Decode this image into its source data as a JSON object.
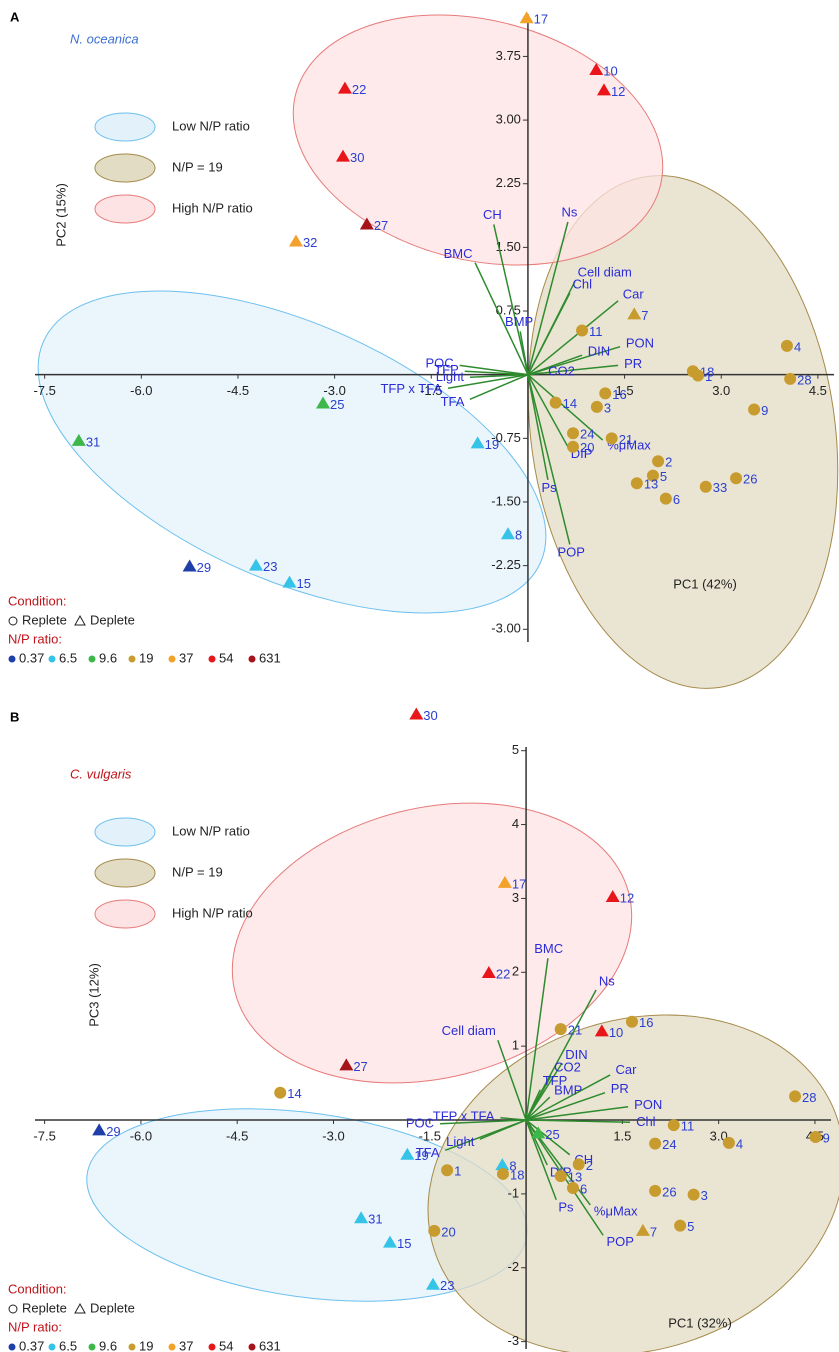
{
  "chart_data": [
    {
      "type": "biplot",
      "panel": "A",
      "title": "N. oceanica",
      "title_color": "#3b6fd0",
      "xlabel": "PC1 (42%)",
      "ylabel": "PC2 (15%)",
      "xlim": [
        -7.65,
        4.75
      ],
      "ylim": [
        -3.15,
        4.25
      ],
      "xticks": [
        -7.5,
        {
          "value": -6,
          "label": "-6.0"
        },
        -4.5,
        {
          "value": -3,
          "label": "-3.0"
        },
        -1.5,
        1.5,
        {
          "value": 3,
          "label": "3.0"
        },
        4.5
      ],
      "yticks": [
        3.75,
        {
          "value": 3,
          "label": "3.00"
        },
        2.25,
        {
          "value": 1.5,
          "label": "1.50"
        },
        0.75,
        {
          "value": -0.75,
          "label": "-0.75"
        },
        {
          "value": -1.5,
          "label": "-1.50"
        },
        -2.25,
        {
          "value": -3,
          "label": "-3.00"
        }
      ],
      "groups": [
        {
          "name": "Low N/P ratio",
          "fill": "#e3f1fb",
          "stroke": "#6cc0ee"
        },
        {
          "name": "N/P = 19",
          "fill": "#e3dcc4",
          "stroke": "#a58a4a"
        },
        {
          "name": "High N/P ratio",
          "fill": "#fde3e3",
          "stroke": "#e87a7a"
        }
      ],
      "condition_title": "Condition:",
      "conditions": [
        "Replete",
        "Deplete"
      ],
      "ratio_title": "N/P ratio:",
      "series": [
        {
          "name": 0.37,
          "color": "#1f3fa8",
          "labels": [
            "29"
          ],
          "x": [
            -5.25
          ],
          "y": [
            -2.26
          ],
          "condition": [
            "Deplete"
          ]
        },
        {
          "name": 6.5,
          "color": "#35c3e8",
          "labels": [
            "19",
            "8",
            "23",
            "15"
          ],
          "x": [
            -0.78,
            -0.31,
            -4.22,
            -3.7
          ],
          "y": [
            -0.81,
            -1.88,
            -2.25,
            -2.45
          ],
          "condition": [
            "Deplete",
            "Deplete",
            "Deplete",
            "Deplete"
          ]
        },
        {
          "name": 9.6,
          "color": "#3cb84a",
          "labels": [
            "25",
            "31"
          ],
          "x": [
            -3.18,
            -6.97
          ],
          "y": [
            -0.34,
            -0.78
          ],
          "condition": [
            "Deplete",
            "Deplete"
          ]
        },
        {
          "name": 19,
          "color": "#c89b2e",
          "labels": [
            "7",
            "11",
            "4",
            "18",
            "1",
            "28",
            "16",
            "9",
            "14",
            "3",
            "24",
            "21",
            "20",
            "2",
            "5",
            "13",
            "6",
            "33",
            "26"
          ],
          "x": [
            1.65,
            0.84,
            4.02,
            2.56,
            2.64,
            4.07,
            1.2,
            3.51,
            0.43,
            1.07,
            0.7,
            1.3,
            0.7,
            2.02,
            1.94,
            1.69,
            2.14,
            2.76,
            3.23
          ],
          "y": [
            0.71,
            0.52,
            0.34,
            0.04,
            -0.01,
            -0.05,
            -0.22,
            -0.41,
            -0.33,
            -0.38,
            -0.69,
            -0.75,
            -0.85,
            -1.02,
            -1.19,
            -1.28,
            -1.46,
            -1.32,
            -1.22
          ],
          "condition": [
            "Deplete",
            "Replete",
            "Replete",
            "Replete",
            "Replete",
            "Replete",
            "Replete",
            "Replete",
            "Replete",
            "Replete",
            "Replete",
            "Replete",
            "Replete",
            "Replete",
            "Replete",
            "Replete",
            "Replete",
            "Replete",
            "Replete"
          ]
        },
        {
          "name": 37,
          "color": "#f2a12a",
          "labels": [
            "17",
            "32"
          ],
          "x": [
            -0.02,
            -3.6
          ],
          "y": [
            4.2,
            1.57
          ],
          "condition": [
            "Deplete",
            "Deplete"
          ]
        },
        {
          "name": 54,
          "color": "#e8161b",
          "labels": [
            "10",
            "12",
            "22",
            "30"
          ],
          "x": [
            1.06,
            1.18,
            -2.84,
            -2.87
          ],
          "y": [
            3.59,
            3.35,
            3.37,
            2.57
          ],
          "condition": [
            "Deplete",
            "Deplete",
            "Deplete",
            "Deplete"
          ]
        },
        {
          "name": 631,
          "color": "#a5141a",
          "labels": [
            "27"
          ],
          "x": [
            -2.5
          ],
          "y": [
            1.77
          ],
          "condition": [
            "Deplete"
          ]
        }
      ],
      "loadings": {
        "color": "#2e8b2e",
        "label_color": "#2b2bd8",
        "labels": [
          "CH",
          "Ns",
          "BMC",
          "Cell diam",
          "Chl",
          "Car",
          "BMP",
          "POC",
          "TFP",
          "DIN",
          "PON",
          "PR",
          "CO2",
          "Light",
          "TFP x TFA",
          "TFA",
          "%μMax",
          "DIP",
          "Ps",
          "POP"
        ],
        "x": [
          -0.53,
          0.62,
          -0.82,
          0.73,
          0.65,
          1.4,
          -0.12,
          -1.06,
          -0.98,
          0.84,
          1.43,
          1.4,
          0.22,
          -0.9,
          -1.24,
          -0.9,
          1.16,
          0.62,
          0.31,
          0.65
        ],
        "y": [
          1.77,
          1.8,
          1.32,
          1.1,
          0.96,
          0.87,
          0.51,
          0.11,
          0.04,
          0.23,
          0.33,
          0.11,
          0.02,
          -0.03,
          -0.16,
          -0.29,
          -0.77,
          -0.85,
          -1.24,
          -2.0
        ]
      }
    },
    {
      "type": "biplot",
      "panel": "B",
      "title": "C. vulgaris",
      "title_color": "#c0141a",
      "xlabel": "PC1 (32%)",
      "ylabel": "PC3 (12%)",
      "xlim": [
        -7.65,
        4.75
      ],
      "ylim": [
        -3.1,
        5.05
      ],
      "xticks": [
        -7.5,
        {
          "value": -6,
          "label": "-6.0"
        },
        -4.5,
        {
          "value": -3,
          "label": "-3.0"
        },
        -1.5,
        1.5,
        {
          "value": 3,
          "label": "3.0"
        },
        4.5
      ],
      "yticks": [
        5,
        4,
        3,
        2,
        1,
        -1,
        -2,
        -3
      ],
      "groups": [
        {
          "name": "Low N/P ratio",
          "fill": "#e3f1fb",
          "stroke": "#6cc0ee"
        },
        {
          "name": "N/P = 19",
          "fill": "#e3dcc4",
          "stroke": "#a58a4a"
        },
        {
          "name": "High N/P ratio",
          "fill": "#fde3e3",
          "stroke": "#e87a7a"
        }
      ],
      "condition_title": "Condition:",
      "conditions": [
        "Replete",
        "Deplete"
      ],
      "ratio_title": "N/P ratio:",
      "series": [
        {
          "name": 0.37,
          "color": "#1f3fa8",
          "labels": [
            "29"
          ],
          "x": [
            -6.65
          ],
          "y": [
            -0.14
          ],
          "condition": [
            "Deplete"
          ]
        },
        {
          "name": 6.5,
          "color": "#35c3e8",
          "labels": [
            "8",
            "19",
            "31",
            "15",
            "23"
          ],
          "x": [
            -0.37,
            -1.85,
            -2.57,
            -2.12,
            -1.45
          ],
          "y": [
            -0.61,
            -0.47,
            -1.33,
            -1.66,
            -2.23
          ],
          "condition": [
            "Deplete",
            "Deplete",
            "Deplete",
            "Deplete",
            "Deplete"
          ]
        },
        {
          "name": 9.6,
          "color": "#3cb84a",
          "labels": [
            "25"
          ],
          "x": [
            0.19
          ],
          "y": [
            -0.18
          ],
          "condition": [
            "Deplete"
          ]
        },
        {
          "name": 19,
          "color": "#c89b2e",
          "labels": [
            "7",
            "14",
            "21",
            "16",
            "28",
            "9",
            "24",
            "11",
            "4",
            "1",
            "18",
            "2",
            "13",
            "6",
            "26",
            "3",
            "5",
            "20"
          ],
          "x": [
            1.82,
            -3.83,
            0.54,
            1.65,
            4.19,
            4.51,
            2.01,
            2.3,
            3.16,
            -1.23,
            -0.36,
            0.82,
            0.54,
            0.73,
            2.01,
            2.61,
            2.4,
            -1.43
          ],
          "y": [
            -1.5,
            0.37,
            1.23,
            1.33,
            0.32,
            -0.23,
            -0.32,
            -0.07,
            -0.31,
            -0.68,
            -0.73,
            -0.6,
            -0.76,
            -0.92,
            -0.96,
            -1.01,
            -1.43,
            -1.5
          ],
          "condition": [
            "Deplete",
            "Replete",
            "Replete",
            "Replete",
            "Replete",
            "Replete",
            "Replete",
            "Replete",
            "Replete",
            "Replete",
            "Replete",
            "Replete",
            "Replete",
            "Replete",
            "Replete",
            "Replete",
            "Replete",
            "Replete"
          ]
        },
        {
          "name": 37,
          "color": "#f2a12a",
          "labels": [
            "17"
          ],
          "x": [
            -0.33
          ],
          "y": [
            3.21
          ],
          "condition": [
            "Deplete"
          ]
        },
        {
          "name": 54,
          "color": "#e8161b",
          "labels": [
            "30",
            "12",
            "22",
            "10"
          ],
          "x": [
            -1.71,
            1.35,
            -0.58,
            1.18
          ],
          "y": [
            5.49,
            3.02,
            1.99,
            1.2
          ],
          "condition": [
            "Deplete",
            "Deplete",
            "Deplete",
            "Deplete"
          ]
        },
        {
          "name": 631,
          "color": "#a5141a",
          "labels": [
            "27"
          ],
          "x": [
            -2.8
          ],
          "y": [
            0.74
          ],
          "condition": [
            "Deplete"
          ]
        }
      ],
      "loadings": {
        "color": "#2e8b2e",
        "label_color": "#2b2bd8",
        "labels": [
          "BMC",
          "Ns",
          "Cell diam",
          "CO2",
          "DIN",
          "Car",
          "PR",
          "PON",
          "BMP",
          "TFP",
          "TFP x TFA",
          "POC",
          "Light",
          "TFA",
          "Chl",
          "CH",
          "DIP",
          "Ps",
          "%μMax",
          "POP"
        ],
        "x": [
          0.34,
          1.09,
          -0.44,
          0.39,
          0.56,
          1.31,
          1.23,
          1.59,
          0.37,
          0.22,
          -0.4,
          -1.34,
          -0.72,
          -1.26,
          1.62,
          0.68,
          0.33,
          0.47,
          1.0,
          1.2
        ],
        "y": [
          2.19,
          1.76,
          1.08,
          0.6,
          0.77,
          0.61,
          0.37,
          0.18,
          0.31,
          0.41,
          0.03,
          -0.05,
          -0.26,
          -0.41,
          -0.03,
          -0.47,
          -0.61,
          -1.08,
          -1.15,
          -1.56
        ]
      }
    }
  ]
}
